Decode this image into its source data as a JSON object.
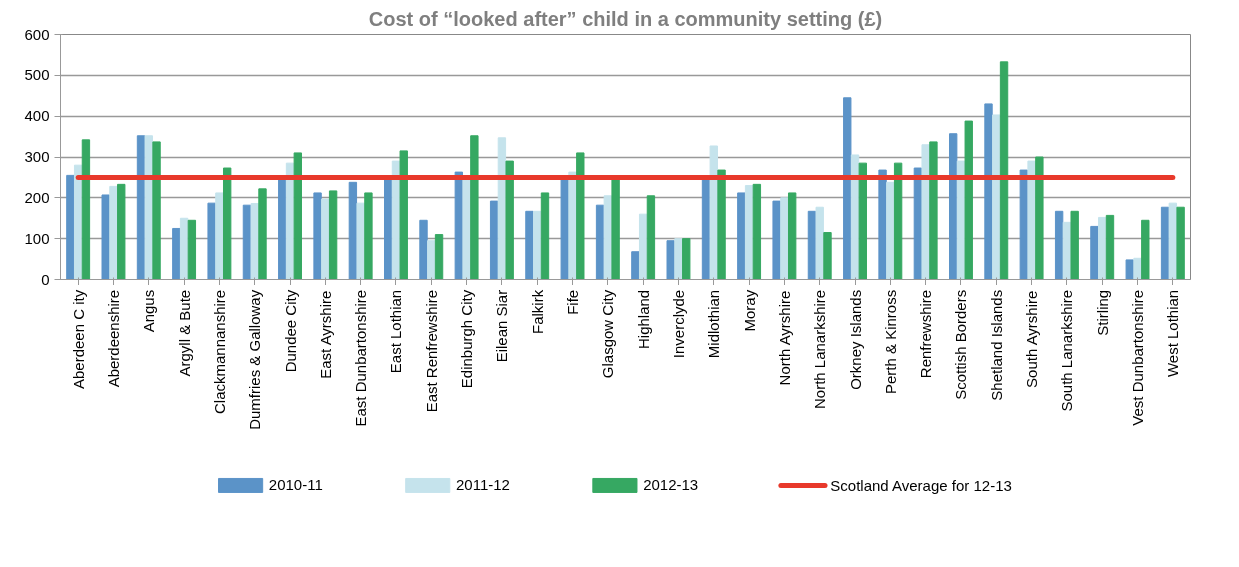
{
  "chart_data": {
    "type": "bar",
    "title": "Cost of “looked after” child in a community setting (£)",
    "categories": [
      "Aberdeen C ity",
      "Aberdeenshire",
      "Angus",
      "Argyll & Bute",
      "Clackmannanshire",
      "Dumfries & Galloway",
      "Dundee City",
      "East Ayrshire",
      "East Dunbartonshire",
      "East Lothian",
      "East Renfrewshire",
      "Edinburgh City",
      "Eilean Siar",
      "Falkirk",
      "Fife",
      "Glasgow City",
      "Highland",
      "Inverclyde",
      "Midlothian",
      "Moray",
      "North Ayrshire",
      "North Lanarkshire",
      "Orkney Islands",
      "Perth & Kinross",
      "Renfrewshire",
      "Scottish Borders",
      "Shetland Islands",
      "South Ayrshire",
      "South Lanarkshire",
      "Stirling",
      "Vest Dunbartonshire",
      "West Lothian"
    ],
    "series": [
      {
        "name": "2010-11",
        "color": "#5b93c8",
        "values": [
          255,
          207,
          352,
          125,
          187,
          182,
          248,
          212,
          238,
          248,
          145,
          263,
          192,
          167,
          248,
          182,
          68,
          95,
          248,
          212,
          192,
          167,
          445,
          268,
          273,
          357,
          430,
          268,
          167,
          130,
          48,
          177
        ]
      },
      {
        "name": "2011-12",
        "color": "#c5e3ec",
        "values": [
          280,
          228,
          352,
          150,
          212,
          186,
          285,
          197,
          187,
          290,
          95,
          248,
          347,
          167,
          263,
          205,
          160,
          100,
          327,
          230,
          200,
          177,
          305,
          238,
          330,
          290,
          403,
          290,
          140,
          152,
          52,
          187
        ]
      },
      {
        "name": "2012-13",
        "color": "#36a862",
        "values": [
          342,
          233,
          337,
          145,
          273,
          222,
          310,
          217,
          212,
          315,
          110,
          352,
          290,
          212,
          310,
          248,
          205,
          100,
          268,
          233,
          212,
          115,
          285,
          285,
          337,
          388,
          533,
          300,
          167,
          157,
          145,
          177
        ]
      },
      {
        "name": "Scotland Average for 12-13",
        "type": "line",
        "color": "#e8392b",
        "values": [
          250,
          250,
          250,
          250,
          250,
          250,
          250,
          250,
          250,
          250,
          250,
          250,
          250,
          250,
          250,
          250,
          250,
          250,
          250,
          250,
          250,
          250,
          250,
          250,
          250,
          250,
          250,
          250,
          250,
          250,
          250,
          250
        ]
      }
    ],
    "ylim": [
      0,
      600
    ],
    "yticks": [
      0,
      100,
      200,
      300,
      400,
      500,
      600
    ],
    "grid": "y",
    "legend": "bottom"
  }
}
